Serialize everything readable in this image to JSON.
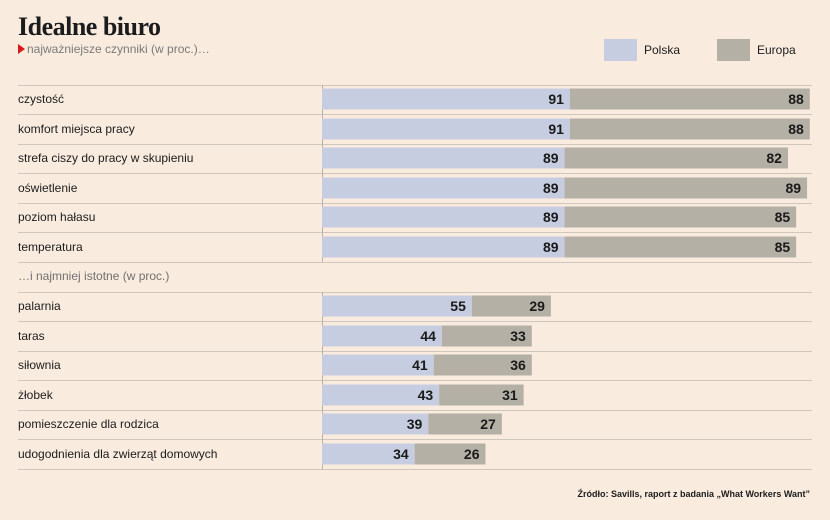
{
  "title": "Idealne biuro",
  "subtitle": "najważniejsze czynniki (w proc.)…",
  "section2_label": "…i najmniej istotne (w proc.)",
  "source": "Źródło: Savills, raport z badania „What Workers Want”",
  "colors": {
    "polska": "#c6cde0",
    "europa": "#b4b0a5",
    "background": "#f9ecdf",
    "accent": "#d8191c"
  },
  "chart_data": {
    "type": "bar",
    "orientation": "horizontal",
    "stacked": true,
    "legend_position": "top-right",
    "series": [
      {
        "name": "Polska",
        "values": [
          91,
          91,
          89,
          89,
          89,
          89,
          55,
          44,
          41,
          43,
          39,
          34
        ]
      },
      {
        "name": "Europa",
        "values": [
          88,
          88,
          82,
          89,
          85,
          85,
          29,
          33,
          36,
          31,
          27,
          26
        ]
      }
    ],
    "categories": [
      "czystość",
      "komfort miejsca pracy",
      "strefa ciszy do pracy w skupieniu",
      "oświetlenie",
      "poziom hałasu",
      "temperatura",
      "palarnia",
      "taras",
      "siłownia",
      "żłobek",
      "pomieszczenie dla rodzica",
      "udogodnienia dla zwierząt domowych"
    ],
    "groups": [
      {
        "label": "najważniejsze czynniki (w proc.)…",
        "category_indices": [
          0,
          1,
          2,
          3,
          4,
          5
        ]
      },
      {
        "label": "…i najmniej istotne (w proc.)",
        "category_indices": [
          6,
          7,
          8,
          9,
          10,
          11
        ]
      }
    ]
  }
}
